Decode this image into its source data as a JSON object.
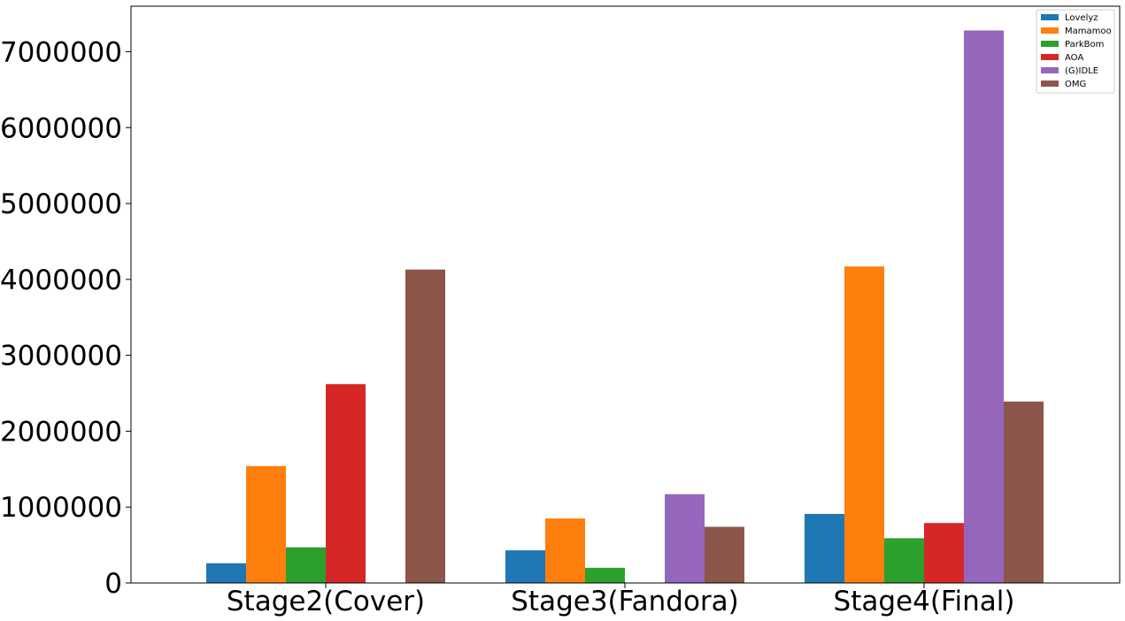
{
  "chart_data": {
    "type": "bar",
    "categories": [
      "Stage2(Cover)",
      "Stage3(Fandora)",
      "Stage4(Final)"
    ],
    "series": [
      {
        "name": "Lovelyz",
        "color": "#1f77b4",
        "values": [
          260000,
          430000,
          910000
        ]
      },
      {
        "name": "Mamamoo",
        "color": "#ff7f0e",
        "values": [
          1540000,
          850000,
          4170000
        ]
      },
      {
        "name": "ParkBom",
        "color": "#2ca02c",
        "values": [
          470000,
          200000,
          590000
        ]
      },
      {
        "name": "AOA",
        "color": "#d62728",
        "values": [
          2620000,
          0,
          790000
        ]
      },
      {
        "name": "(G)IDLE",
        "color": "#9467bd",
        "values": [
          0,
          1170000,
          7280000
        ]
      },
      {
        "name": "OMG",
        "color": "#8c564b",
        "values": [
          4130000,
          740000,
          2390000
        ]
      }
    ],
    "y_ticks": [
      "0",
      "1000000",
      "2000000",
      "3000000",
      "4000000",
      "5000000",
      "6000000",
      "7000000"
    ],
    "ylim": [
      0,
      7600000
    ],
    "title": "",
    "xlabel": "",
    "ylabel": "",
    "legend_position": "top-right",
    "grid": false
  }
}
